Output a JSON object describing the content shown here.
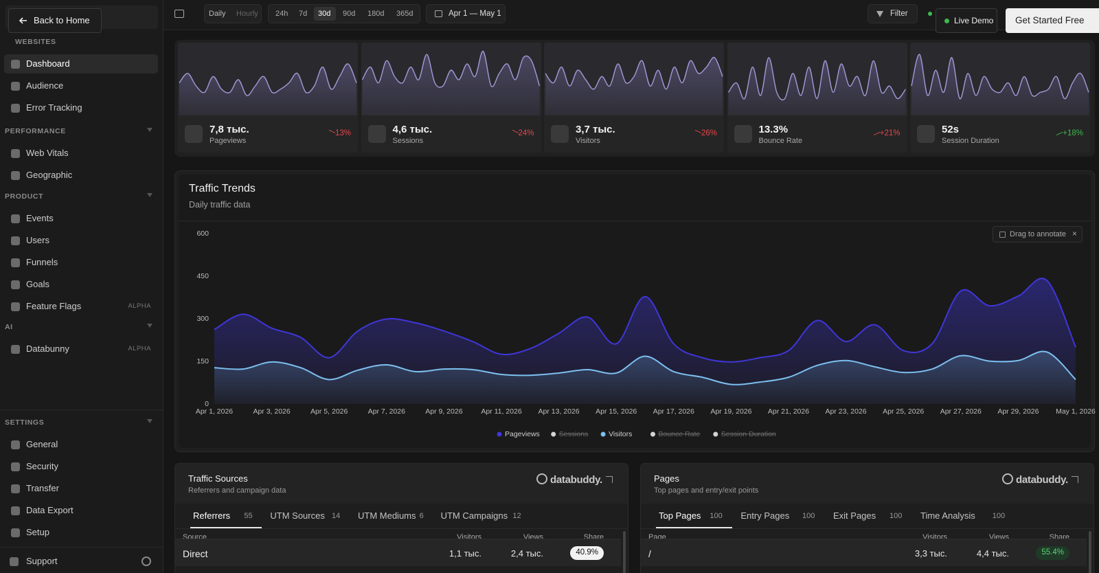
{
  "back_button": "Back to Home",
  "sidebar": {
    "groups": [
      {
        "title": "WEBSITES",
        "items": [
          {
            "label": "Dashboard",
            "active": true
          },
          {
            "label": "Audience"
          },
          {
            "label": "Error Tracking"
          }
        ]
      },
      {
        "title": "PERFORMANCE",
        "items": [
          {
            "label": "Web Vitals"
          },
          {
            "label": "Geographic"
          }
        ]
      },
      {
        "title": "PRODUCT",
        "items": [
          {
            "label": "Events"
          },
          {
            "label": "Users"
          },
          {
            "label": "Funnels"
          },
          {
            "label": "Goals"
          },
          {
            "label": "Feature Flags",
            "badge": "ALPHA"
          }
        ]
      },
      {
        "title": "AI",
        "items": [
          {
            "label": "Databunny",
            "badge": "ALPHA"
          }
        ]
      },
      {
        "title": "SETTINGS",
        "items": [
          {
            "label": "General"
          },
          {
            "label": "Security"
          },
          {
            "label": "Transfer"
          },
          {
            "label": "Data Export"
          },
          {
            "label": "Setup"
          }
        ]
      }
    ],
    "support": "Support"
  },
  "toolbar": {
    "granularity": [
      "Daily",
      "Hourly"
    ],
    "granularity_active": 0,
    "ranges": [
      "24h",
      "7d",
      "30d",
      "90d",
      "180d",
      "365d"
    ],
    "range_active": 2,
    "date_range": "Apr 1 — May 1",
    "filter": "Filter",
    "live_demo": "Live Demo",
    "cta": "Get Started Free"
  },
  "metrics": [
    {
      "value": "7,8 тыс.",
      "label": "Pageviews",
      "change": "13%",
      "trend": "down",
      "change_color": "#e5484d",
      "sparkline": [
        45,
        60,
        40,
        30,
        55,
        35,
        30,
        50,
        25,
        40,
        55,
        30,
        35,
        45,
        60,
        30,
        40,
        70,
        35,
        55,
        75,
        45
      ]
    },
    {
      "value": "4,6 тыс.",
      "label": "Sessions",
      "change": "24%",
      "trend": "down",
      "change_color": "#e5484d",
      "sparkline": [
        50,
        70,
        45,
        80,
        55,
        45,
        70,
        50,
        90,
        45,
        40,
        65,
        50,
        75,
        55,
        95,
        40,
        60,
        75,
        50,
        85,
        80,
        40
      ]
    },
    {
      "value": "3,7 тыс.",
      "label": "Visitors",
      "change": "26%",
      "trend": "down",
      "change_color": "#e5484d",
      "sparkline": [
        60,
        45,
        70,
        40,
        65,
        50,
        35,
        55,
        40,
        75,
        45,
        55,
        80,
        40,
        65,
        35,
        70,
        45,
        80,
        60,
        70,
        85,
        55
      ]
    },
    {
      "value": "13.3%",
      "label": "Bounce Rate",
      "change": "+21%",
      "trend": "up",
      "change_color": "#e5484d",
      "sparkline": [
        30,
        45,
        20,
        70,
        25,
        85,
        30,
        20,
        60,
        25,
        70,
        20,
        80,
        30,
        75,
        40,
        55,
        25,
        80,
        30,
        40,
        20,
        35
      ]
    },
    {
      "value": "52s",
      "label": "Session Duration",
      "change": "+18%",
      "trend": "up",
      "change_color": "#3fb950",
      "sparkline": [
        40,
        90,
        25,
        65,
        30,
        85,
        20,
        60,
        25,
        55,
        35,
        30,
        45,
        25,
        55,
        25,
        30,
        35,
        55,
        20,
        45,
        60,
        30
      ]
    }
  ],
  "chart_data": {
    "type": "line",
    "title": "Traffic Trends",
    "subtitle": "Daily traffic data",
    "annotation_button": "Drag to annotate",
    "categories": [
      "Apr 1, 2026",
      null,
      "Apr 3, 2026",
      null,
      "Apr 5, 2026",
      null,
      "Apr 7, 2026",
      null,
      "Apr 9, 2026",
      null,
      "Apr 11, 2026",
      null,
      "Apr 13, 2026",
      null,
      "Apr 15, 2026",
      null,
      "Apr 17, 2026",
      null,
      "Apr 19, 2026",
      null,
      "Apr 21, 2026",
      null,
      "Apr 23, 2026",
      null,
      "Apr 25, 2026",
      null,
      "Apr 27, 2026",
      null,
      "Apr 29, 2026",
      null,
      "May 1, 2026"
    ],
    "ylim": [
      0,
      600
    ],
    "yticks": [
      0,
      150,
      300,
      450,
      600
    ],
    "series": [
      {
        "name": "Pageviews",
        "color": "#3f36d8",
        "values": [
          262,
          316,
          267,
          235,
          163,
          257,
          299,
          286,
          257,
          220,
          175,
          195,
          249,
          306,
          212,
          378,
          212,
          163,
          148,
          163,
          188,
          294,
          220,
          279,
          188,
          212,
          398,
          346,
          380,
          435,
          200
        ]
      },
      {
        "name": "Sessions",
        "color": "#d4d4d4",
        "hidden": true
      },
      {
        "name": "Visitors",
        "color": "#7cc0f0",
        "values": [
          128,
          123,
          148,
          128,
          86,
          119,
          138,
          114,
          123,
          121,
          104,
          101,
          109,
          121,
          109,
          168,
          114,
          94,
          69,
          77,
          94,
          136,
          153,
          131,
          111,
          123,
          170,
          151,
          153,
          183,
          86
        ]
      },
      {
        "name": "Bounce Rate",
        "color": "#d4d4d4",
        "hidden": true
      },
      {
        "name": "Session Duration",
        "color": "#d4d4d4",
        "hidden": true
      }
    ]
  },
  "panels": [
    {
      "title": "Traffic Sources",
      "subtitle": "Referrers and campaign data",
      "brand": "databuddy.",
      "tabs": [
        {
          "label": "Referrers",
          "count": 55
        },
        {
          "label": "UTM Sources",
          "count": 14
        },
        {
          "label": "UTM Mediums",
          "count": 6
        },
        {
          "label": "UTM Campaigns",
          "count": 12
        }
      ],
      "active_tab": 0,
      "columns": [
        "Source",
        "Visitors",
        "Views",
        "Share"
      ],
      "rows": [
        [
          "Direct",
          "1,1 тыс.",
          "2,4 тыс.",
          "40.9%"
        ]
      ]
    },
    {
      "title": "Pages",
      "subtitle": "Top pages and entry/exit points",
      "brand": "databuddy.",
      "tabs": [
        {
          "label": "Top Pages",
          "count": 100
        },
        {
          "label": "Entry Pages",
          "count": 100
        },
        {
          "label": "Exit Pages",
          "count": 100
        },
        {
          "label": "Time Analysis",
          "count": 100
        }
      ],
      "active_tab": 0,
      "columns": [
        "Page",
        "Visitors",
        "Views",
        "Share"
      ],
      "rows": [
        [
          "/",
          "3,3 тыс.",
          "4,4 тыс.",
          "55.4%"
        ]
      ]
    }
  ]
}
